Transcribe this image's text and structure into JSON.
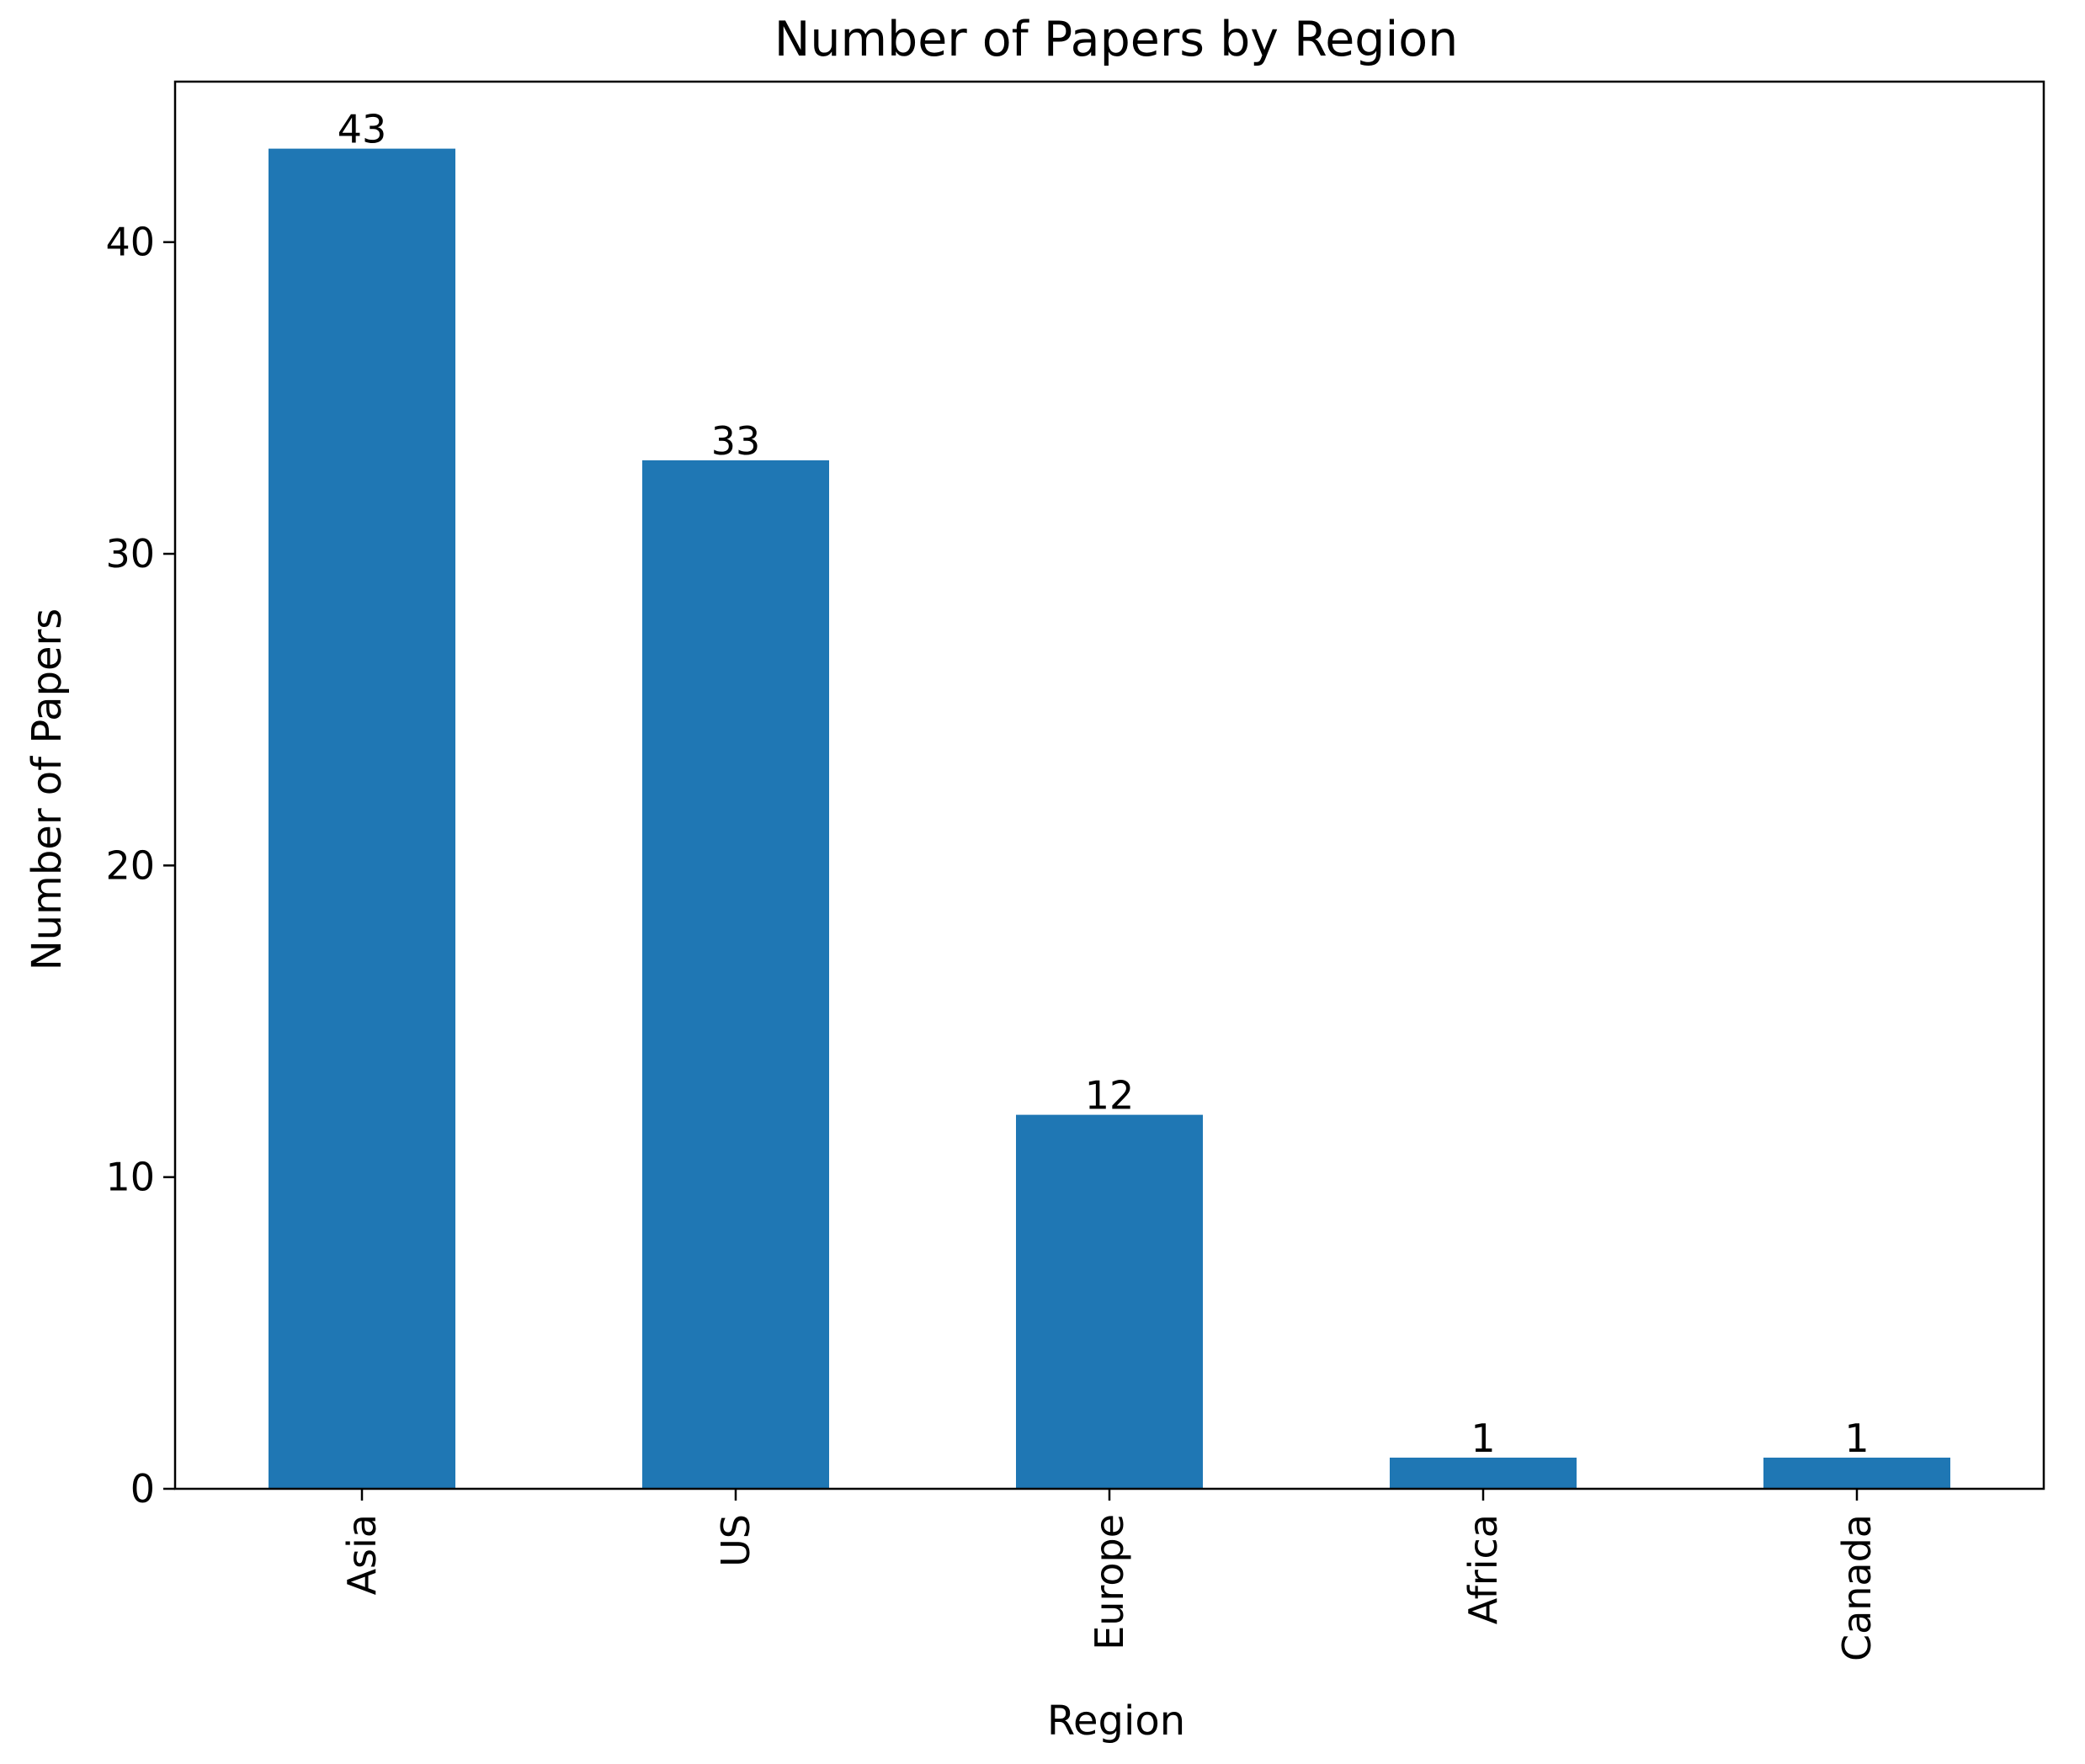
{
  "chart_data": {
    "type": "bar",
    "title": "Number of Papers by Region",
    "xlabel": "Region",
    "ylabel": "Number of Papers",
    "categories": [
      "Asia",
      "US",
      "Europe",
      "Africa",
      "Canada"
    ],
    "values": [
      43,
      33,
      12,
      1,
      1
    ],
    "data_labels": [
      "43",
      "33",
      "12",
      "1",
      "1"
    ],
    "ylim": [
      0,
      45.15
    ],
    "yticks": [
      0,
      10,
      20,
      30,
      40
    ],
    "ytick_labels": [
      "0",
      "10",
      "20",
      "30",
      "40"
    ],
    "bar_color": "#1f77b4",
    "grid": false,
    "legend": false,
    "xtick_rotation": "vertical"
  }
}
